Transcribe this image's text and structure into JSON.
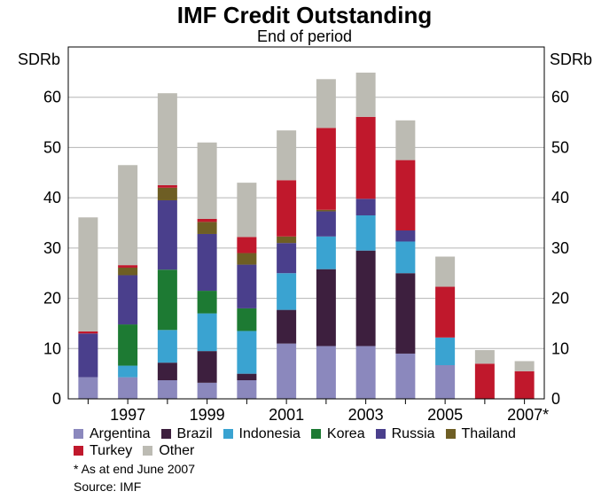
{
  "chart_data": {
    "type": "bar",
    "stacked": true,
    "title": "IMF Credit Outstanding",
    "subtitle": "End of period",
    "ylabel_left": "SDRb",
    "ylabel_right": "SDRb",
    "ylim": [
      0,
      70
    ],
    "yticks": [
      0,
      10,
      20,
      30,
      40,
      50,
      60
    ],
    "grid": true,
    "legend_position": "bottom",
    "categories": [
      "1996",
      "1997",
      "1998",
      "1999",
      "2000",
      "2001",
      "2002",
      "2003",
      "2004",
      "2005",
      "2006",
      "2007*"
    ],
    "x_tick_labels": [
      "",
      "1997",
      "",
      "1999",
      "",
      "2001",
      "",
      "2003",
      "",
      "2005",
      "",
      "2007*"
    ],
    "series": [
      {
        "name": "Argentina",
        "color": "#8b88bd",
        "values": [
          4.3,
          4.3,
          3.7,
          3.2,
          3.7,
          11.0,
          10.5,
          10.5,
          9.0,
          6.7,
          0,
          0
        ]
      },
      {
        "name": "Brazil",
        "color": "#3d1f3e",
        "values": [
          0,
          0,
          3.5,
          6.3,
          1.3,
          6.7,
          15.3,
          19.0,
          16.0,
          0,
          0,
          0
        ]
      },
      {
        "name": "Indonesia",
        "color": "#3aa3d1",
        "values": [
          0,
          2.3,
          6.5,
          7.5,
          8.5,
          7.3,
          6.5,
          7.0,
          6.3,
          5.5,
          0,
          0
        ]
      },
      {
        "name": "Korea",
        "color": "#1d7a33",
        "values": [
          0,
          8.2,
          12.0,
          4.5,
          4.5,
          0,
          0,
          0,
          0,
          0,
          0,
          0
        ]
      },
      {
        "name": "Russia",
        "color": "#4a3f8c",
        "values": [
          8.7,
          9.8,
          13.8,
          11.3,
          8.7,
          6.0,
          5.0,
          3.3,
          2.2,
          0,
          0,
          0
        ]
      },
      {
        "name": "Thailand",
        "color": "#6e5e24",
        "values": [
          0,
          1.5,
          2.5,
          2.4,
          2.3,
          1.3,
          0.3,
          0,
          0,
          0,
          0,
          0
        ]
      },
      {
        "name": "Turkey",
        "color": "#c0182c",
        "values": [
          0.4,
          0.5,
          0.5,
          0.6,
          3.2,
          11.2,
          16.3,
          16.3,
          14.0,
          10.1,
          7.0,
          5.5
        ]
      },
      {
        "name": "Other",
        "color": "#bcbbb3",
        "values": [
          22.7,
          19.9,
          18.3,
          15.2,
          10.8,
          9.9,
          9.7,
          8.8,
          7.9,
          6.0,
          2.7,
          2.0
        ]
      }
    ]
  },
  "footnote": "*   As at end June 2007",
  "source": "Source: IMF"
}
